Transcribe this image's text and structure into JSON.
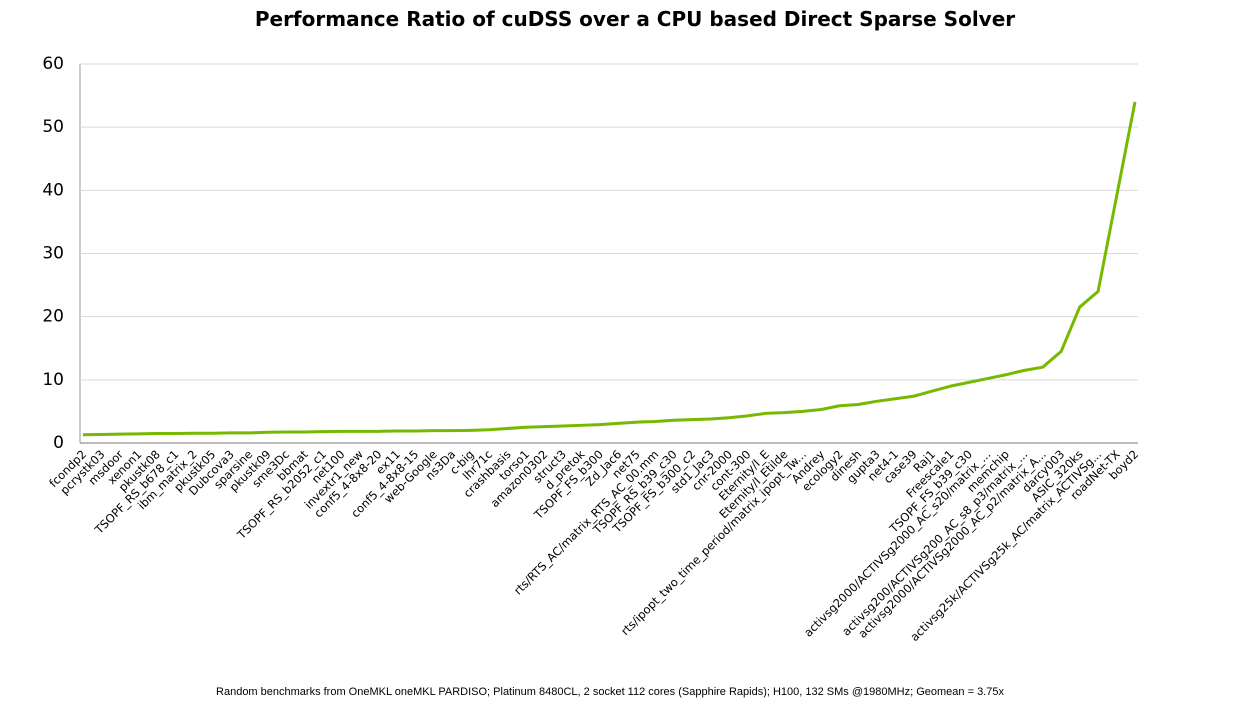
{
  "chart_data": {
    "type": "line",
    "title": "Performance Ratio of cuDSS over a CPU based Direct Sparse Solver",
    "footnote": "Random benchmarks from OneMKL oneMKL PARDISO; Platinum 8480CL, 2 socket 112 cores (Sapphire Rapids); H100, 132 SMs @1980MHz; Geomean = 3.75x",
    "categories": [
      "fcondp2",
      "pcrystk03",
      "msdoor",
      "xenon1",
      "pkustk08",
      "TSOPF_RS_b678_c1",
      "ibm_matrix_2",
      "pkustk05",
      "Dubcova3",
      "sparsine",
      "pkustk09",
      "sme3Dc",
      "bbmat",
      "TSOPF_RS_b2052_c1",
      "net100",
      "invextr1_new",
      "conf5_4-8x8-20",
      "ex11",
      "conf5_4-8x8-15",
      "web-Google",
      "ns3Da",
      "c-big",
      "lhr71c",
      "crashbasis",
      "torso1",
      "amazon0302",
      "struct3",
      "d_pretok",
      "TSOPF_FS_b300",
      "Zd_Jac6",
      "net75",
      "rts/RTS_AC/matrix_RTS_AC_00.mm",
      "TSOPF_RS_b39_c30",
      "TSOPF_FS_b300_c2",
      "std1_Jac3",
      "cnr-2000",
      "cont-300",
      "Eternity/I_E",
      "Eternity/I_Etilde",
      "rts/ipopt_two_time_period/matrix_ipopt_Tw...",
      "Andrey",
      "ecology2",
      "dinesh",
      "gupta3",
      "net4-1",
      "case39",
      "Raj1",
      "Freescale1",
      "TSOPF_FS_b39_c30",
      "activsg2000/ACTIVSg2000_AC_s20/matrix_...",
      "memchip",
      "activsg200/ACTIVSg200_AC_s8_p3/matrix_...",
      "activsg2000/ACTIVSg2000_AC_p2/matrix_A...",
      "darcy003",
      "ASIC_320ks",
      "activsg25k/ACTIVSg25k_AC/matrix_ACTIVSg...",
      "roadNet-TX",
      "boyd2"
    ],
    "series": [
      {
        "color": "#76b900",
        "values": [
          1.3,
          1.35,
          1.4,
          1.45,
          1.5,
          1.5,
          1.55,
          1.55,
          1.6,
          1.6,
          1.7,
          1.75,
          1.75,
          1.8,
          1.85,
          1.85,
          1.85,
          1.9,
          1.9,
          1.95,
          1.95,
          2.0,
          2.1,
          2.3,
          2.5,
          2.6,
          2.7,
          2.8,
          2.9,
          3.1,
          3.3,
          3.4,
          3.6,
          3.7,
          3.8,
          4.0,
          4.3,
          4.7,
          4.8,
          5.0,
          5.3,
          5.9,
          6.1,
          6.6,
          7.0,
          7.4,
          8.2,
          9.0,
          9.6,
          10.2,
          10.8,
          11.5,
          12.0,
          14.5,
          21.5,
          24.0,
          39.0,
          54
        ]
      }
    ],
    "ylim": [
      0,
      60
    ],
    "yticks": [
      0,
      10,
      20,
      30,
      40,
      50,
      60
    ],
    "grid": true
  }
}
